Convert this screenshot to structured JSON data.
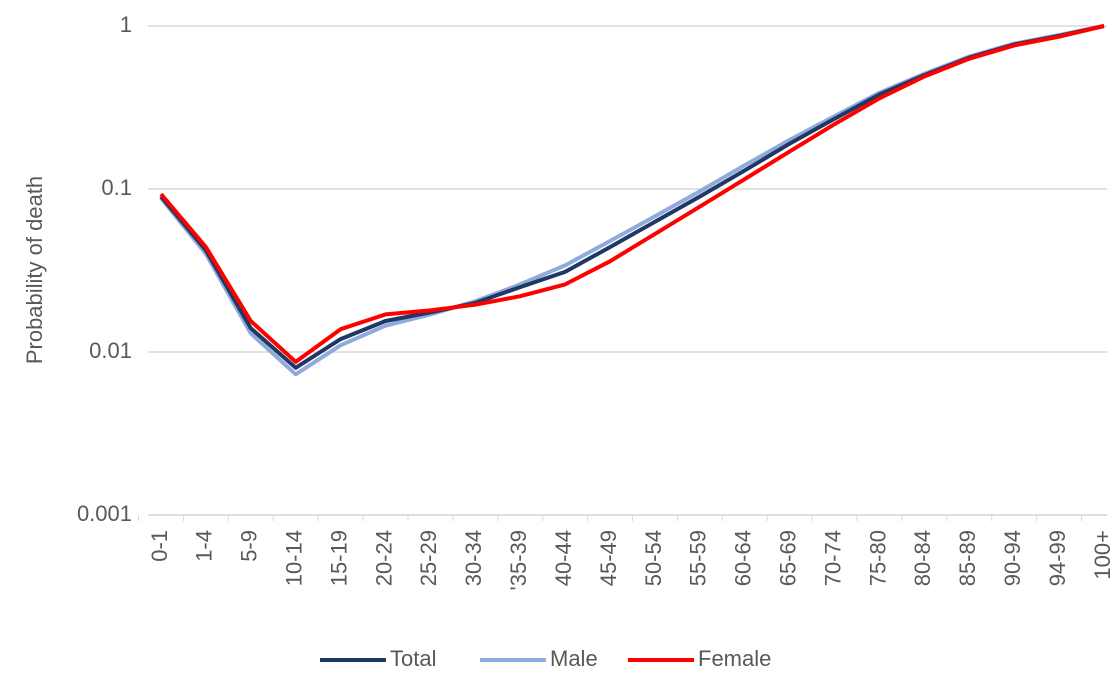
{
  "chart_data": {
    "type": "line",
    "y_label": "Probability of death",
    "log_scale": true,
    "grid": true,
    "legend": "bottom",
    "categories": [
      "0-1",
      "1-4",
      "5-9",
      "10-14",
      "15-19",
      "20-24",
      "25-29",
      "30-34",
      "'35-39",
      "40-44",
      "45-49",
      "50-54",
      "55-59",
      "60-64",
      "65-69",
      "70-74",
      "75-80",
      "80-84",
      "85-89",
      "90-94",
      "94-99",
      "100+"
    ],
    "ylim": [
      0.001,
      1
    ],
    "yticks": [
      0.001,
      0.01,
      0.1,
      1
    ],
    "series": [
      {
        "name": "Total",
        "color": "#1f3864",
        "values": [
          0.09,
          0.042,
          0.014,
          0.008,
          0.012,
          0.0155,
          0.0175,
          0.02,
          0.025,
          0.031,
          0.044,
          0.063,
          0.09,
          0.13,
          0.19,
          0.27,
          0.38,
          0.5,
          0.64,
          0.77,
          0.87,
          1
        ]
      },
      {
        "name": "Male",
        "color": "#8faadc",
        "values": [
          0.088,
          0.04,
          0.013,
          0.0073,
          0.011,
          0.0145,
          0.017,
          0.0205,
          0.026,
          0.034,
          0.048,
          0.068,
          0.097,
          0.14,
          0.2,
          0.28,
          0.39,
          0.51,
          0.65,
          0.78,
          0.88,
          1
        ]
      },
      {
        "name": "Female",
        "color": "#ff0000",
        "values": [
          0.093,
          0.044,
          0.0155,
          0.0087,
          0.0138,
          0.017,
          0.018,
          0.0195,
          0.022,
          0.026,
          0.036,
          0.053,
          0.078,
          0.115,
          0.17,
          0.25,
          0.36,
          0.49,
          0.63,
          0.76,
          0.86,
          1
        ]
      }
    ]
  }
}
